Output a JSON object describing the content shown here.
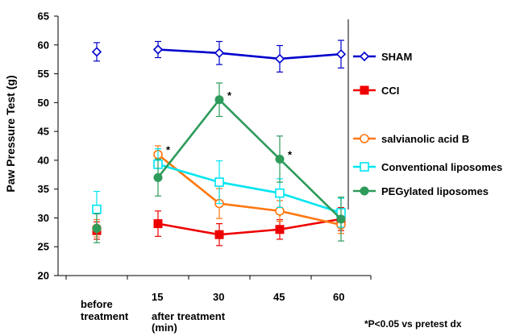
{
  "chart_data": {
    "type": "line",
    "ylabel": "Paw Pressure Test (g)",
    "ylim": [
      20,
      65
    ],
    "yticks": [
      20,
      25,
      30,
      35,
      40,
      45,
      50,
      55,
      60,
      65
    ],
    "x_categories": [
      "before",
      "15",
      "30",
      "45",
      "60"
    ],
    "x_tick_labels": [
      {
        "lines": [
          "before",
          "treatment"
        ]
      },
      {
        "lines": [
          "15"
        ]
      },
      {
        "lines": [
          "30"
        ]
      },
      {
        "lines": [
          "45"
        ]
      },
      {
        "lines": [
          "60"
        ]
      }
    ],
    "x_subtitle": [
      "after treatment",
      "(min)"
    ],
    "footnote": "*P<0.05 vs pretest dx",
    "series": [
      {
        "name": "SHAM",
        "color": "#0000cc",
        "marker": "diamond-open",
        "connect_from": 1,
        "values": [
          58.8,
          59.2,
          58.6,
          57.6,
          58.4
        ],
        "errors": [
          1.6,
          1.4,
          2.0,
          2.3,
          2.4
        ]
      },
      {
        "name": "CCI",
        "color": "#ee0000",
        "marker": "square-filled",
        "connect_from": 1,
        "values": [
          27.8,
          29.0,
          27.1,
          28.0,
          29.8
        ],
        "errors": [
          1.5,
          2.2,
          1.9,
          1.7,
          2.0
        ]
      },
      {
        "name": "salvianolic acid B",
        "color": "#ff7711",
        "marker": "circle-open",
        "connect_from": 1,
        "values": [
          28.2,
          41.0,
          32.5,
          31.2,
          28.8
        ],
        "errors": [
          1.5,
          1.5,
          2.6,
          1.8,
          1.5
        ]
      },
      {
        "name": "Conventional liposomes",
        "color": "#00e5f0",
        "marker": "square-open",
        "connect_from": 1,
        "values": [
          31.5,
          39.3,
          36.2,
          34.3,
          30.9
        ],
        "errors": [
          3.1,
          2.7,
          3.7,
          2.5,
          2.5
        ]
      },
      {
        "name": "PEGylated liposomes",
        "color": "#2e9b5b",
        "marker": "circle-filled",
        "connect_from": 1,
        "values": [
          28.2,
          37.0,
          50.5,
          40.2,
          29.8
        ],
        "errors": [
          2.5,
          3.2,
          2.9,
          4.0,
          3.8
        ]
      }
    ],
    "annotations": [
      {
        "series": "salvianolic acid B",
        "index": 1,
        "text": "*"
      },
      {
        "series": "PEGylated liposomes",
        "index": 2,
        "text": "*"
      },
      {
        "series": "PEGylated liposomes",
        "index": 3,
        "text": "*"
      }
    ]
  }
}
